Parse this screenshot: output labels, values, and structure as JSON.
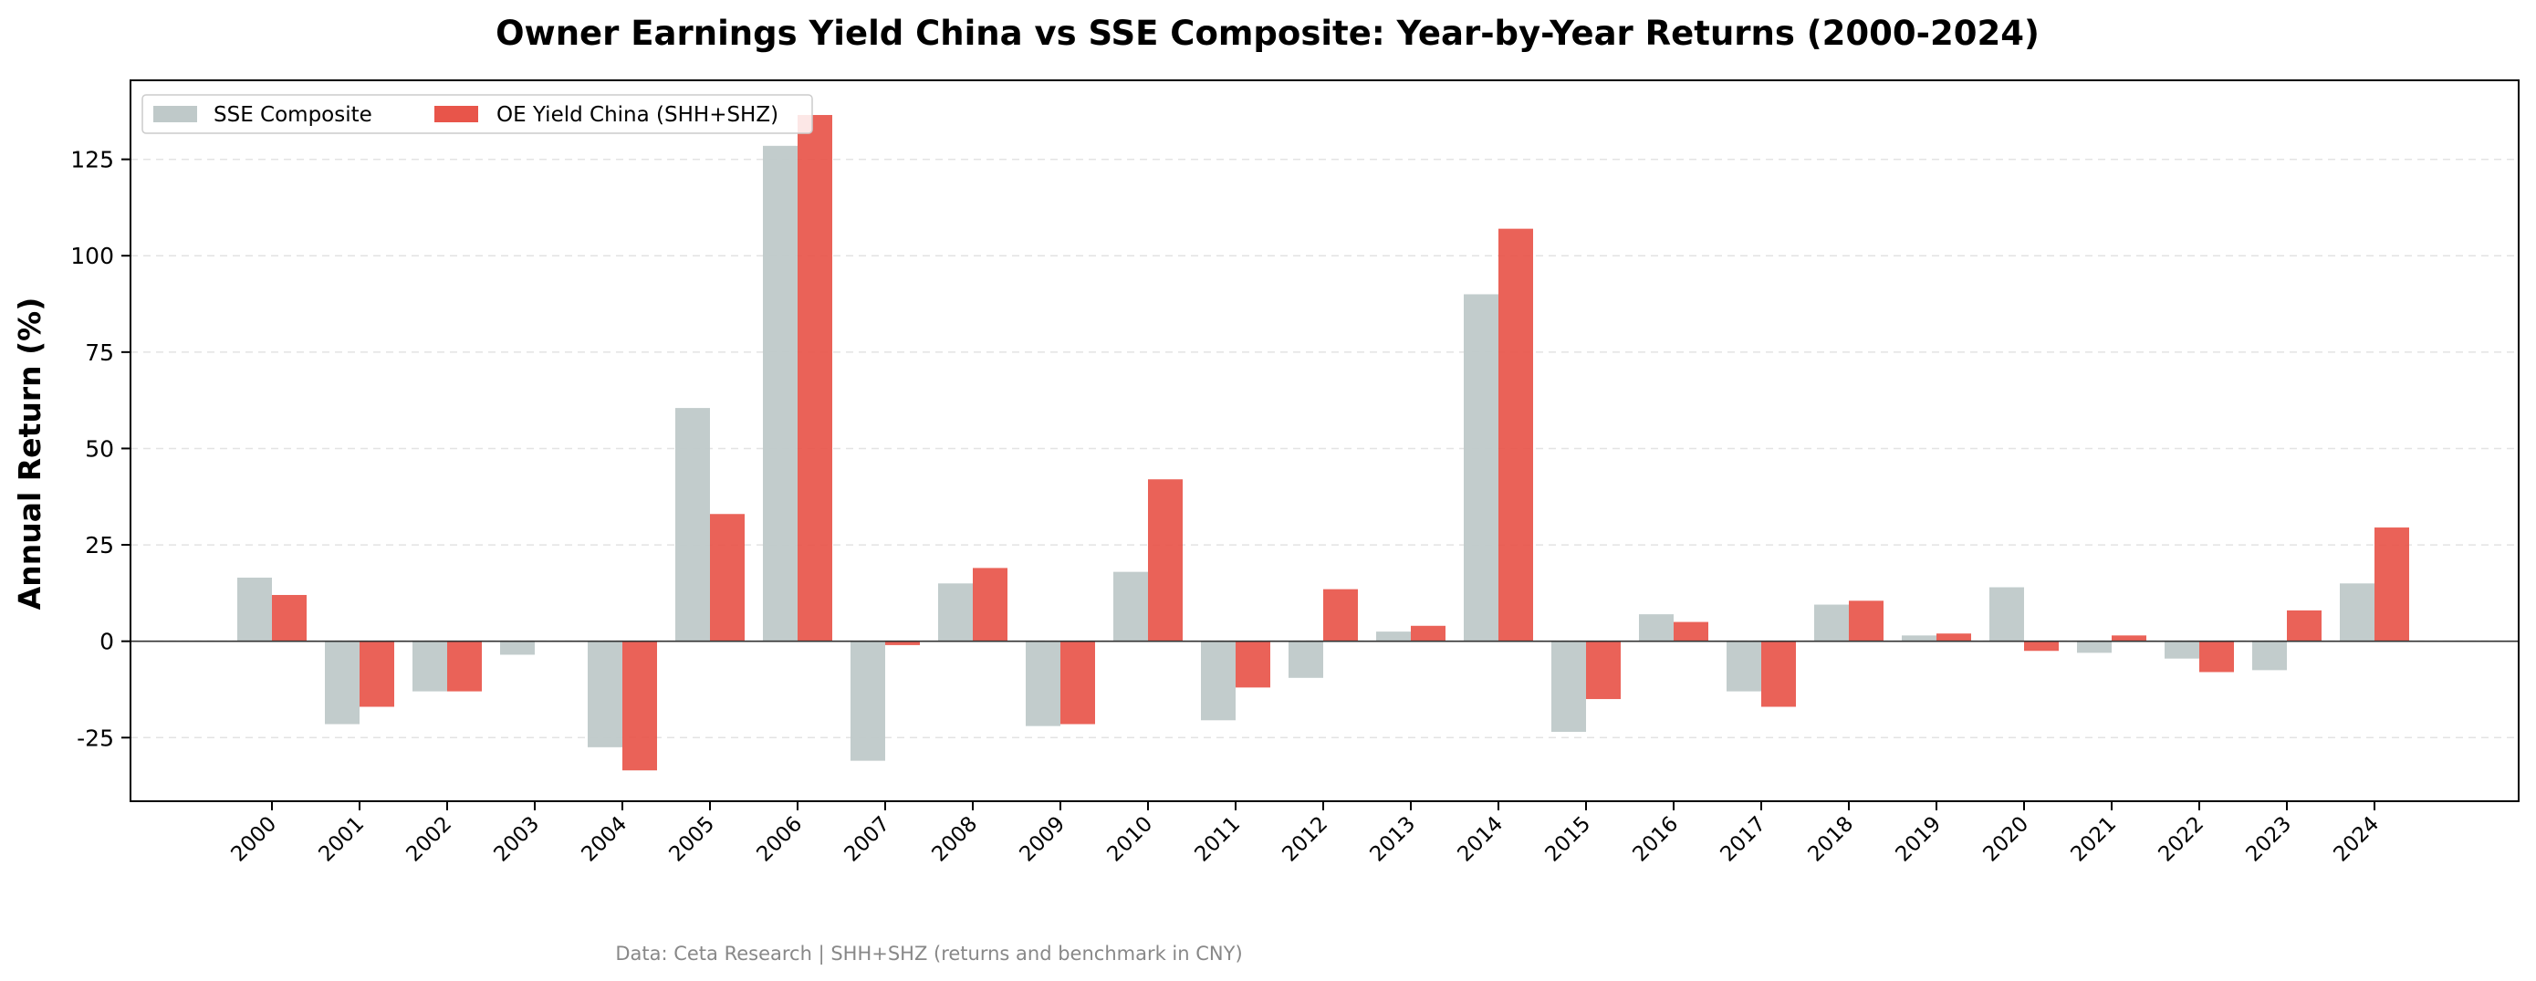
{
  "chart_data": {
    "type": "bar",
    "title": "Owner Earnings Yield China vs SSE Composite: Year-by-Year Returns (2000-2024)",
    "xlabel": "",
    "ylabel": "Annual Return (%)",
    "categories": [
      "2000",
      "2001",
      "2002",
      "2003",
      "2004",
      "2005",
      "2006",
      "2007",
      "2008",
      "2009",
      "2010",
      "2011",
      "2012",
      "2013",
      "2014",
      "2015",
      "2016",
      "2017",
      "2018",
      "2019",
      "2020",
      "2021",
      "2022",
      "2023",
      "2024"
    ],
    "series": [
      {
        "name": "SSE Composite",
        "color": "#bfc9c9",
        "values": [
          16.5,
          -21.5,
          -13.0,
          -3.5,
          -27.5,
          60.5,
          128.5,
          -31.0,
          15.0,
          -22.0,
          18.0,
          -20.5,
          -9.5,
          2.5,
          90.0,
          -23.5,
          7.0,
          -13.0,
          9.5,
          1.5,
          14.0,
          -3.0,
          -4.5,
          -7.5,
          15.0
        ]
      },
      {
        "name": "OE Yield China (SHH+SHZ)",
        "color": "#e8554a",
        "values": [
          12.0,
          -17.0,
          -13.0,
          0.0,
          -33.5,
          33.0,
          136.5,
          -1.0,
          19.0,
          -21.5,
          42.0,
          -12.0,
          13.5,
          4.0,
          107.0,
          -15.0,
          5.0,
          -17.0,
          10.5,
          2.0,
          -2.5,
          1.5,
          -8.0,
          8.0,
          29.5
        ]
      }
    ],
    "ylim": [
      -41.5,
      145.5
    ],
    "yticks": [
      -25,
      0,
      25,
      50,
      75,
      100,
      125
    ],
    "grid": true,
    "legend_position": "top-left",
    "source": "Data: Ceta Research | SHH+SHZ (returns and benchmark in CNY)"
  }
}
